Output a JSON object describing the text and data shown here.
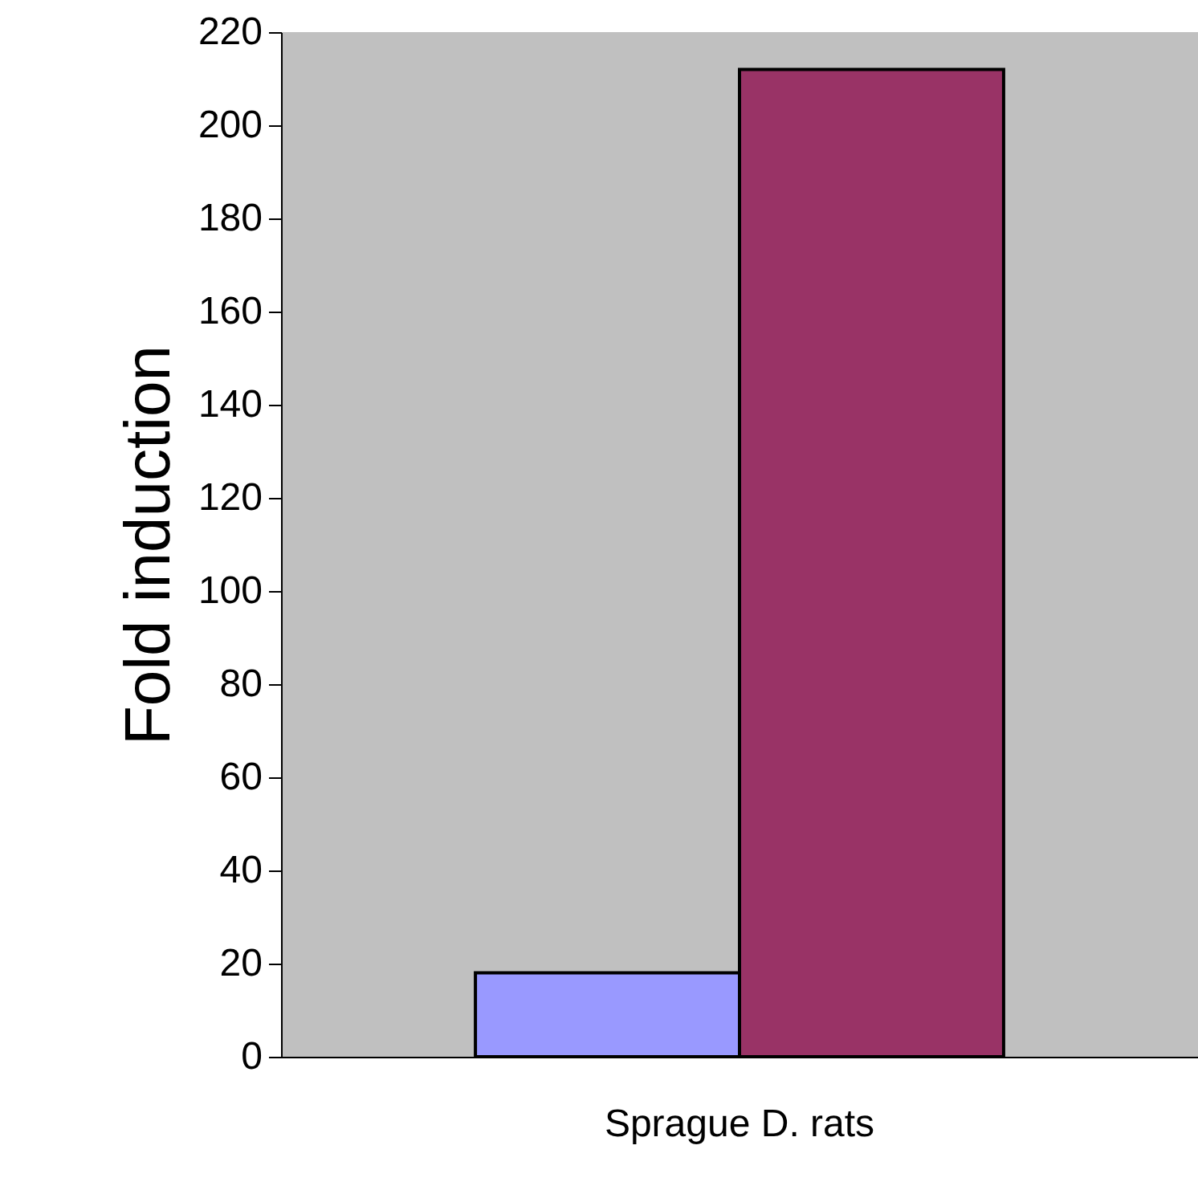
{
  "chart_data": {
    "type": "bar",
    "ylabel": "Fold induction",
    "categories": [
      "Sprague D. rats"
    ],
    "series": [
      {
        "color": "#9999ff",
        "values": [
          18
        ]
      },
      {
        "color": "#993366",
        "values": [
          212
        ]
      }
    ],
    "ylim": [
      0,
      220
    ],
    "yticks": [
      0,
      20,
      40,
      60,
      80,
      100,
      120,
      140,
      160,
      180,
      200,
      220
    ],
    "grid": false
  }
}
